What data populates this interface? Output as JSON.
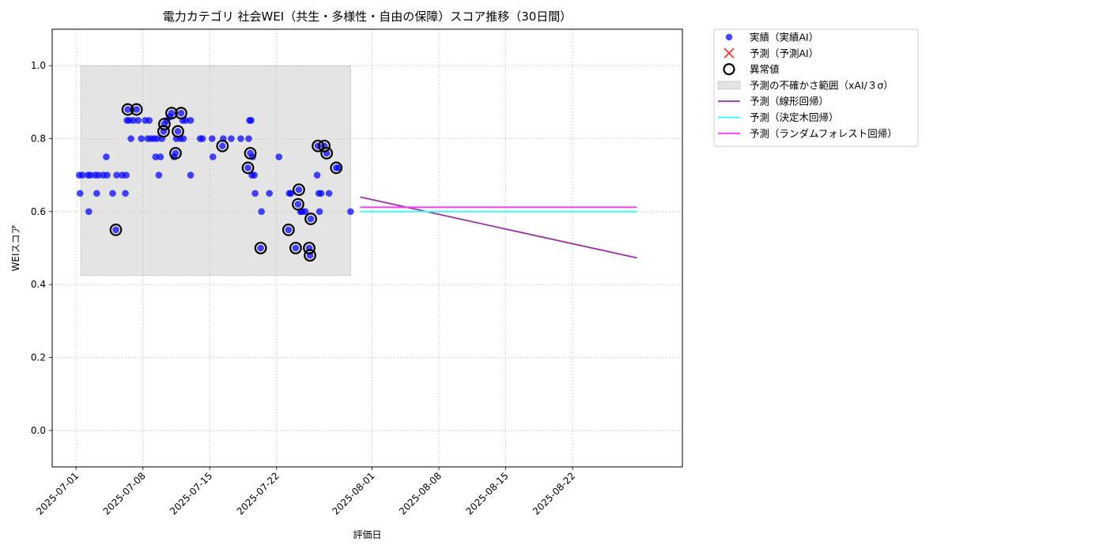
{
  "chart_data": {
    "type": "scatter",
    "title": "電力カテゴリ 社会WEI（共生・多様性・自由の保障）スコア推移（30日間）",
    "xlabel": "評価日",
    "ylabel": "WEIスコア",
    "xlim": [
      "2025-06-28T12:00",
      "2025-09-02T12:00"
    ],
    "ylim": [
      -0.1,
      1.1
    ],
    "x_ticks": [
      "2025-07-01",
      "2025-07-08",
      "2025-07-15",
      "2025-07-22",
      "2025-08-01",
      "2025-08-08",
      "2025-08-15",
      "2025-08-22"
    ],
    "y_ticks": [
      0.0,
      0.2,
      0.4,
      0.6,
      0.8,
      1.0
    ],
    "grid": true,
    "legend_position": "outside-top-right",
    "colors": {
      "actual": "#0000ff",
      "anomaly_edge": "#000000",
      "band": "#bfbfbf",
      "linear": "#9b30a8",
      "tree": "#33ffff",
      "forest": "#ff33ff",
      "forecast_marker": "#ff3333",
      "grid": "#c8c8c8"
    },
    "legend": [
      {
        "label": "実績（実績AI）",
        "kind": "dot"
      },
      {
        "label": "予測（予測AI）",
        "kind": "x"
      },
      {
        "label": "異常値",
        "kind": "ring"
      },
      {
        "label": "予測の不確かさ範囲（xAI/３σ）",
        "kind": "band"
      },
      {
        "label": "予測（線形回帰）",
        "kind": "line-linear"
      },
      {
        "label": "予測（決定木回帰）",
        "kind": "line-tree"
      },
      {
        "label": "予測（ランダムフォレスト回帰）",
        "kind": "line-forest"
      }
    ],
    "uncertainty_band": {
      "x": [
        "2025-07-01T12:00",
        "2025-07-29T18:00"
      ],
      "y": [
        0.425,
        1.0
      ]
    },
    "actual": [
      [
        "2025-07-01T08:00",
        0.7
      ],
      [
        "2025-07-01T10:00",
        0.65
      ],
      [
        "2025-07-01T16:00",
        0.7
      ],
      [
        "2025-07-02T06:00",
        0.7
      ],
      [
        "2025-07-02T08:00",
        0.6
      ],
      [
        "2025-07-02T12:00",
        0.7
      ],
      [
        "2025-07-03T00:00",
        0.7
      ],
      [
        "2025-07-03T04:00",
        0.65
      ],
      [
        "2025-07-03T08:00",
        0.7
      ],
      [
        "2025-07-03T20:00",
        0.7
      ],
      [
        "2025-07-04T04:00",
        0.75
      ],
      [
        "2025-07-04T06:00",
        0.7
      ],
      [
        "2025-07-04T20:00",
        0.65
      ],
      [
        "2025-07-05T04:00",
        0.55
      ],
      [
        "2025-07-05T06:00",
        0.7
      ],
      [
        "2025-07-05T20:00",
        0.7
      ],
      [
        "2025-07-06T04:00",
        0.65
      ],
      [
        "2025-07-06T06:00",
        0.7
      ],
      [
        "2025-07-06T08:00",
        0.85
      ],
      [
        "2025-07-06T10:00",
        0.88
      ],
      [
        "2025-07-06T14:00",
        0.85
      ],
      [
        "2025-07-06T18:00",
        0.8
      ],
      [
        "2025-07-07T00:00",
        0.85
      ],
      [
        "2025-07-07T08:00",
        0.88
      ],
      [
        "2025-07-07T12:00",
        0.85
      ],
      [
        "2025-07-07T20:00",
        0.8
      ],
      [
        "2025-07-08T06:00",
        0.85
      ],
      [
        "2025-07-08T12:00",
        0.8
      ],
      [
        "2025-07-08T16:00",
        0.85
      ],
      [
        "2025-07-08T20:00",
        0.8
      ],
      [
        "2025-07-09T04:00",
        0.8
      ],
      [
        "2025-07-09T08:00",
        0.75
      ],
      [
        "2025-07-09T12:00",
        0.8
      ],
      [
        "2025-07-09T16:00",
        0.7
      ],
      [
        "2025-07-09T20:00",
        0.75
      ],
      [
        "2025-07-10T00:00",
        0.8
      ],
      [
        "2025-07-10T04:00",
        0.82
      ],
      [
        "2025-07-10T06:00",
        0.84
      ],
      [
        "2025-07-10T12:00",
        0.85
      ],
      [
        "2025-07-10T20:00",
        0.86
      ],
      [
        "2025-07-11T00:00",
        0.87
      ],
      [
        "2025-07-11T06:00",
        0.75
      ],
      [
        "2025-07-11T10:00",
        0.76
      ],
      [
        "2025-07-11T12:00",
        0.8
      ],
      [
        "2025-07-11T16:00",
        0.82
      ],
      [
        "2025-07-11T22:00",
        0.8
      ],
      [
        "2025-07-12T00:00",
        0.87
      ],
      [
        "2025-07-12T04:00",
        0.85
      ],
      [
        "2025-07-12T06:00",
        0.8
      ],
      [
        "2025-07-12T12:00",
        0.85
      ],
      [
        "2025-07-13T00:00",
        0.7
      ],
      [
        "2025-07-13T00:00",
        0.85
      ],
      [
        "2025-07-14T00:00",
        0.8
      ],
      [
        "2025-07-14T06:00",
        0.8
      ],
      [
        "2025-07-15T06:00",
        0.8
      ],
      [
        "2025-07-15T08:00",
        0.75
      ],
      [
        "2025-07-16T08:00",
        0.78
      ],
      [
        "2025-07-16T10:00",
        0.8
      ],
      [
        "2025-07-17T06:00",
        0.8
      ],
      [
        "2025-07-18T06:00",
        0.8
      ],
      [
        "2025-07-19T00:00",
        0.72
      ],
      [
        "2025-07-19T02:00",
        0.8
      ],
      [
        "2025-07-19T04:00",
        0.85
      ],
      [
        "2025-07-19T06:00",
        0.76
      ],
      [
        "2025-07-19T08:00",
        0.85
      ],
      [
        "2025-07-19T10:00",
        0.7
      ],
      [
        "2025-07-19T12:00",
        0.75
      ],
      [
        "2025-07-19T16:00",
        0.7
      ],
      [
        "2025-07-19T18:00",
        0.65
      ],
      [
        "2025-07-20T08:00",
        0.5
      ],
      [
        "2025-07-20T10:00",
        0.6
      ],
      [
        "2025-07-21T06:00",
        0.65
      ],
      [
        "2025-07-22T06:00",
        0.75
      ],
      [
        "2025-07-23T06:00",
        0.55
      ],
      [
        "2025-07-23T08:00",
        0.65
      ],
      [
        "2025-07-23T12:00",
        0.65
      ],
      [
        "2025-07-24T00:00",
        0.5
      ],
      [
        "2025-07-24T06:00",
        0.62
      ],
      [
        "2025-07-24T08:00",
        0.66
      ],
      [
        "2025-07-24T12:00",
        0.6
      ],
      [
        "2025-07-24T16:00",
        0.6
      ],
      [
        "2025-07-25T00:00",
        0.6
      ],
      [
        "2025-07-25T10:00",
        0.5
      ],
      [
        "2025-07-25T12:00",
        0.48
      ],
      [
        "2025-07-25T14:00",
        0.58
      ],
      [
        "2025-07-26T06:00",
        0.7
      ],
      [
        "2025-07-26T08:00",
        0.78
      ],
      [
        "2025-07-26T10:00",
        0.65
      ],
      [
        "2025-07-26T12:00",
        0.6
      ],
      [
        "2025-07-26T16:00",
        0.65
      ],
      [
        "2025-07-27T00:00",
        0.78
      ],
      [
        "2025-07-27T06:00",
        0.76
      ],
      [
        "2025-07-27T12:00",
        0.65
      ],
      [
        "2025-07-28T06:00",
        0.72
      ],
      [
        "2025-07-28T12:00",
        0.72
      ],
      [
        "2025-07-29T18:00",
        0.6
      ]
    ],
    "anomalies": [
      [
        "2025-07-05T04:00",
        0.55
      ],
      [
        "2025-07-06T10:00",
        0.88
      ],
      [
        "2025-07-07T08:00",
        0.88
      ],
      [
        "2025-07-10T04:00",
        0.82
      ],
      [
        "2025-07-10T06:00",
        0.84
      ],
      [
        "2025-07-11T00:00",
        0.87
      ],
      [
        "2025-07-11T10:00",
        0.76
      ],
      [
        "2025-07-11T16:00",
        0.82
      ],
      [
        "2025-07-12T00:00",
        0.87
      ],
      [
        "2025-07-16T08:00",
        0.78
      ],
      [
        "2025-07-19T00:00",
        0.72
      ],
      [
        "2025-07-19T06:00",
        0.76
      ],
      [
        "2025-07-20T08:00",
        0.5
      ],
      [
        "2025-07-23T06:00",
        0.55
      ],
      [
        "2025-07-24T00:00",
        0.5
      ],
      [
        "2025-07-24T06:00",
        0.62
      ],
      [
        "2025-07-24T08:00",
        0.66
      ],
      [
        "2025-07-25T10:00",
        0.5
      ],
      [
        "2025-07-25T12:00",
        0.48
      ],
      [
        "2025-07-25T14:00",
        0.58
      ],
      [
        "2025-07-26T08:00",
        0.78
      ],
      [
        "2025-07-27T00:00",
        0.78
      ],
      [
        "2025-07-27T06:00",
        0.76
      ],
      [
        "2025-07-28T06:00",
        0.72
      ]
    ],
    "forecast_lines": [
      {
        "kind": "linear",
        "x": [
          "2025-07-30T18:00",
          "2025-08-28T18:00"
        ],
        "y": [
          0.64,
          0.473
        ]
      },
      {
        "kind": "tree",
        "x": [
          "2025-07-30T18:00",
          "2025-08-28T18:00"
        ],
        "y": [
          0.6,
          0.6
        ]
      },
      {
        "kind": "forest",
        "x": [
          "2025-07-30T18:00",
          "2025-08-28T18:00"
        ],
        "y": [
          0.612,
          0.612
        ]
      }
    ]
  }
}
